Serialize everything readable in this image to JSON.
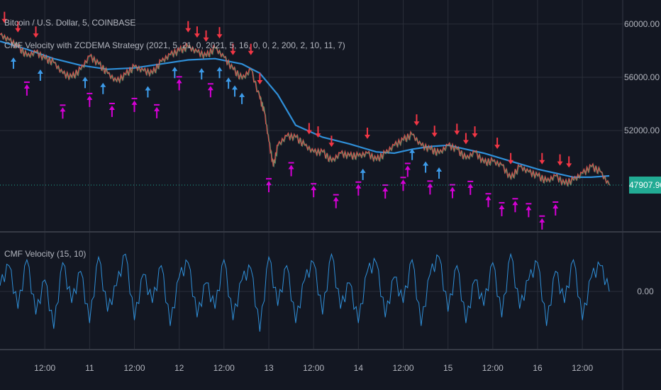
{
  "header": {
    "symbol_line": "Bitcoin / U.S. Dollar, 5, COINBASE",
    "strategy_line": "CMF Velocity with ZCDEMA Strategy (2021, 5, 21, 0, 2021, 5, 16, 0, 0, 2, 200, 2, 10, 11, 7)",
    "oscillator_line": "CMF Velocity (15, 10)"
  },
  "colors": {
    "background": "#131722",
    "grid": "#2a2e39",
    "axis_text": "#b2b5be",
    "ma_line": "#2f8fd8",
    "buy_arrow": "#3d9be9",
    "sell_arrow": "#f23645",
    "entry_marker": "#d500d5",
    "candle_up": "#4caf7a",
    "candle_down": "#ef5350",
    "oscillator_line": "#2f8fd8",
    "last_price_bg": "#22ab94"
  },
  "chart_data": [
    {
      "type": "line",
      "panel": "price",
      "y_ticks": [
        "60000.00",
        "56000.00",
        "52000.00"
      ],
      "ylim": [
        44500,
        61800
      ],
      "last_price": "47907.96",
      "x_ticks": [
        "12:00",
        "11",
        "12:00",
        "12",
        "12:00",
        "13",
        "12:00",
        "14",
        "12:00",
        "15",
        "12:00",
        "16",
        "12:00"
      ],
      "x_tick_units": [
        0.5,
        1,
        1.5,
        2,
        2.5,
        3,
        3.5,
        4,
        4.5,
        5,
        5.5,
        6,
        6.5
      ],
      "xlim": [
        0.0,
        6.95
      ],
      "series": [
        {
          "kind": "price",
          "x": [
            0.0,
            0.1,
            0.2,
            0.3,
            0.4,
            0.5,
            0.6,
            0.7,
            0.8,
            0.9,
            1.0,
            1.1,
            1.2,
            1.3,
            1.4,
            1.5,
            1.6,
            1.7,
            1.8,
            1.9,
            2.0,
            2.1,
            2.2,
            2.3,
            2.4,
            2.5,
            2.6,
            2.7,
            2.8,
            2.9,
            2.95,
            3.0,
            3.05,
            3.1,
            3.2,
            3.3,
            3.4,
            3.5,
            3.6,
            3.7,
            3.8,
            3.9,
            4.0,
            4.1,
            4.2,
            4.3,
            4.4,
            4.5,
            4.6,
            4.7,
            4.8,
            4.9,
            5.0,
            5.1,
            5.2,
            5.3,
            5.4,
            5.5,
            5.6,
            5.7,
            5.8,
            5.9,
            6.0,
            6.1,
            6.2,
            6.3,
            6.4,
            6.5,
            6.6,
            6.7,
            6.8
          ],
          "values": [
            59200,
            58800,
            58300,
            57600,
            57900,
            57400,
            57100,
            56300,
            56000,
            56600,
            57600,
            57000,
            56300,
            55700,
            56200,
            56800,
            56500,
            56300,
            57200,
            57700,
            58000,
            58300,
            57900,
            57600,
            58200,
            57500,
            56600,
            55900,
            56600,
            54400,
            53400,
            51200,
            49300,
            50900,
            51600,
            51500,
            50900,
            50400,
            50400,
            49700,
            50300,
            50100,
            50100,
            50300,
            49800,
            50300,
            50900,
            51300,
            51700,
            50900,
            50600,
            50300,
            50900,
            50600,
            49900,
            50400,
            49600,
            49700,
            49400,
            48400,
            49300,
            48900,
            48600,
            48200,
            48600,
            48000,
            48300,
            48800,
            49300,
            48900,
            47908
          ]
        },
        {
          "kind": "moving_average",
          "x": [
            0.0,
            0.3,
            0.6,
            0.9,
            1.2,
            1.5,
            1.8,
            2.1,
            2.4,
            2.7,
            2.9,
            3.1,
            3.3,
            3.6,
            3.9,
            4.2,
            4.4,
            4.6,
            4.8,
            5.0,
            5.2,
            5.4,
            5.6,
            5.8,
            6.0,
            6.2,
            6.4,
            6.6,
            6.8
          ],
          "values": [
            58700,
            58100,
            57400,
            56900,
            56600,
            56700,
            57000,
            57300,
            57400,
            57000,
            56300,
            54700,
            52400,
            51500,
            51000,
            50400,
            50300,
            50600,
            50800,
            50900,
            50600,
            50300,
            49900,
            49500,
            49100,
            48800,
            48500,
            48500,
            48600
          ]
        }
      ],
      "buy_arrow_x": [
        0.15,
        0.45,
        0.95,
        1.15,
        1.65,
        1.95,
        2.25,
        2.45,
        2.55,
        2.62,
        2.7,
        4.6,
        4.75,
        4.9,
        4.05
      ],
      "sell_arrow_x": [
        0.05,
        0.2,
        0.4,
        2.1,
        2.2,
        2.3,
        2.45,
        2.6,
        2.8,
        2.9,
        3.45,
        3.55,
        3.7,
        4.1,
        4.65,
        4.85,
        5.1,
        5.2,
        5.3,
        5.55,
        5.7,
        6.05,
        6.25,
        6.35
      ],
      "entry_marker_x": [
        0.3,
        0.7,
        1.0,
        1.25,
        1.5,
        1.75,
        2.0,
        2.35,
        3.0,
        3.25,
        3.5,
        3.75,
        4.0,
        4.3,
        4.5,
        4.55,
        4.8,
        5.05,
        5.25,
        5.45,
        5.6,
        5.75,
        5.9,
        6.05,
        6.2
      ]
    },
    {
      "type": "line",
      "panel": "oscillator",
      "title": "CMF Velocity (15, 10)",
      "y_ticks": [
        "0.00"
      ],
      "ylim": [
        -1.0,
        1.0
      ],
      "xlim": [
        0.0,
        6.95
      ],
      "series": [
        {
          "kind": "oscillator",
          "x": [
            0.0,
            0.1,
            0.2,
            0.3,
            0.4,
            0.5,
            0.6,
            0.7,
            0.8,
            0.9,
            1.0,
            1.1,
            1.2,
            1.3,
            1.4,
            1.5,
            1.6,
            1.7,
            1.8,
            1.9,
            2.0,
            2.1,
            2.2,
            2.3,
            2.4,
            2.5,
            2.6,
            2.7,
            2.8,
            2.9,
            3.0,
            3.1,
            3.2,
            3.3,
            3.4,
            3.5,
            3.6,
            3.7,
            3.8,
            3.9,
            4.0,
            4.1,
            4.2,
            4.3,
            4.4,
            4.5,
            4.6,
            4.7,
            4.8,
            4.9,
            5.0,
            5.1,
            5.2,
            5.3,
            5.4,
            5.5,
            5.6,
            5.7,
            5.8,
            5.9,
            6.0,
            6.1,
            6.2,
            6.3,
            6.4,
            6.5,
            6.6,
            6.7,
            6.8
          ],
          "values": [
            0.1,
            0.45,
            -0.3,
            0.55,
            -0.4,
            0.2,
            -0.65,
            0.5,
            -0.2,
            0.35,
            -0.55,
            0.6,
            -0.35,
            0.1,
            0.65,
            -0.5,
            0.3,
            -0.2,
            0.45,
            -0.6,
            0.25,
            0.5,
            -0.45,
            0.15,
            -0.3,
            0.55,
            -0.5,
            0.2,
            0.4,
            -0.7,
            0.6,
            -0.25,
            0.45,
            -0.55,
            0.2,
            0.5,
            -0.4,
            0.65,
            -0.3,
            0.15,
            -0.55,
            0.35,
            0.5,
            -0.45,
            0.25,
            -0.2,
            0.55,
            -0.6,
            0.3,
            0.6,
            -0.35,
            0.45,
            -0.55,
            0.2,
            -0.25,
            0.5,
            -0.45,
            0.65,
            -0.3,
            0.2,
            0.5,
            -0.6,
            0.35,
            -0.2,
            0.55,
            -0.5,
            0.25,
            0.45,
            0.0
          ]
        }
      ]
    }
  ]
}
